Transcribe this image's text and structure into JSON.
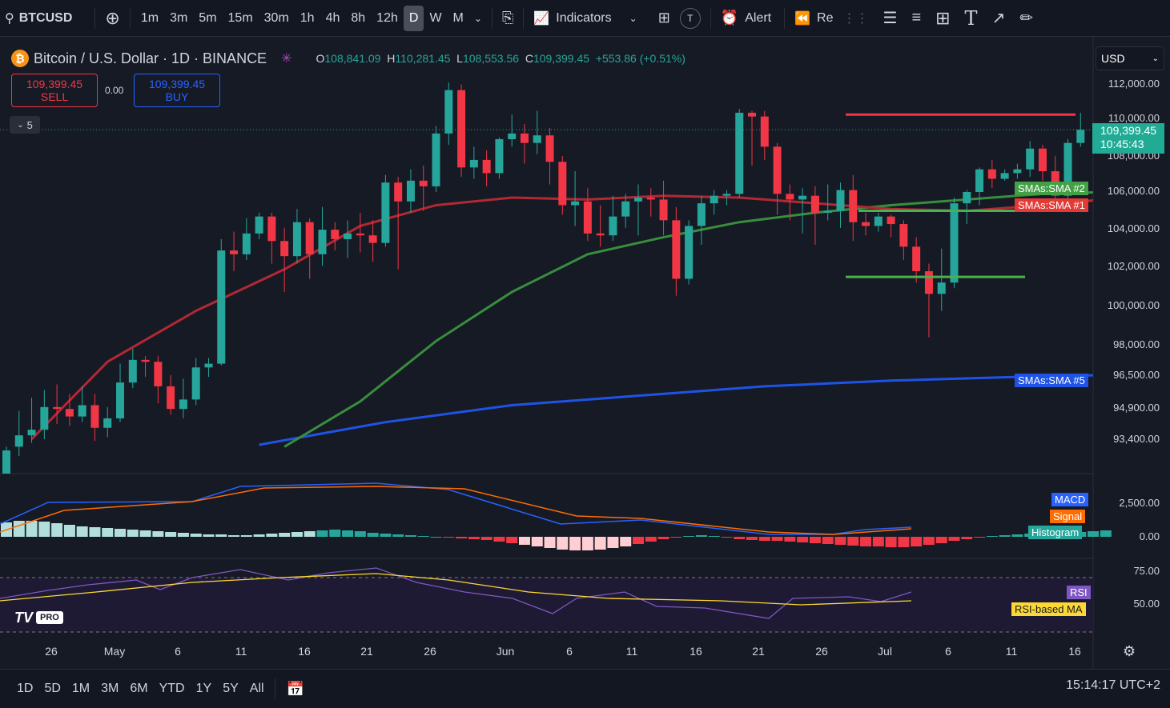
{
  "toolbar": {
    "symbol": "BTCUSD",
    "timeframes": [
      "1m",
      "3m",
      "5m",
      "15m",
      "30m",
      "1h",
      "4h",
      "8h",
      "12h",
      "D",
      "W",
      "M"
    ],
    "active_tf": "D",
    "indicators": "Indicators",
    "template_badge": "T",
    "alert": "Alert",
    "replay": "Re"
  },
  "legend": {
    "title": "Bitcoin / U.S. Dollar · 1D · BINANCE",
    "open_k": "O",
    "open": "108,841.09",
    "high_k": "H",
    "high": "110,281.45",
    "low_k": "L",
    "low": "108,553.56",
    "close_k": "C",
    "close": "109,399.45",
    "change": "+553.86 (+0.51%)"
  },
  "trade": {
    "sell_price": "109,399.45",
    "sell_label": "SELL",
    "buy_price": "109,399.45",
    "buy_label": "BUY",
    "spread": "0.00",
    "collapse": "5"
  },
  "currency": "USD",
  "price_axis": [
    "112,000.00",
    "110,000.00",
    "108,000.00",
    "106,000.00",
    "104,000.00",
    "102,000.00",
    "100,000.00",
    "98,000.00",
    "96,500.00",
    "94,900.00",
    "93,400.00"
  ],
  "last_price": "109,399.45",
  "countdown": "10:45:43",
  "tags": {
    "sma2": "SMAs:SMA #2",
    "sma1": "SMAs:SMA #1",
    "sma5": "SMAs:SMA #5",
    "macd": "MACD",
    "signal": "Signal",
    "hist": "Histogram",
    "rsi": "RSI",
    "rsi_ma": "RSI-based MA"
  },
  "macd_axis": [
    "2,500.00",
    "0.00"
  ],
  "rsi_axis": [
    "75.00",
    "50.00"
  ],
  "x_axis": [
    "26",
    "May",
    "6",
    "11",
    "16",
    "21",
    "26",
    "Jun",
    "6",
    "11",
    "16",
    "21",
    "26",
    "Jul",
    "6",
    "11",
    "16"
  ],
  "ranges": [
    "1D",
    "5D",
    "1M",
    "3M",
    "6M",
    "YTD",
    "1Y",
    "5Y",
    "All"
  ],
  "clock": "15:14:17 UTC+2",
  "logo": "PRO",
  "colors": {
    "up": "#26a69a",
    "down": "#f23645",
    "sma1": "#b22833",
    "sma2": "#388e3c",
    "sma5": "#1e53e5"
  },
  "chart_data": {
    "type": "candlestick",
    "candles": [
      [
        90500,
        92400,
        89800,
        92600
      ],
      [
        92600,
        93200,
        92100,
        94500
      ],
      [
        93200,
        93500,
        92800,
        95200
      ],
      [
        93500,
        94700,
        93000,
        95600
      ],
      [
        94700,
        94600,
        93800,
        95900
      ],
      [
        94600,
        94200,
        93700,
        95400
      ],
      [
        94200,
        94800,
        93900,
        95800
      ],
      [
        94800,
        93600,
        92900,
        95400
      ],
      [
        93600,
        94100,
        93100,
        94700
      ],
      [
        94100,
        96000,
        93900,
        97000
      ],
      [
        96000,
        97200,
        95700,
        97800
      ],
      [
        97200,
        97100,
        96300,
        97400
      ],
      [
        97100,
        95800,
        94900,
        97400
      ],
      [
        95800,
        94600,
        94300,
        96400
      ],
      [
        94600,
        95100,
        94100,
        96200
      ],
      [
        95100,
        96800,
        94800,
        97300
      ],
      [
        96800,
        97000,
        96300,
        97300
      ],
      [
        97000,
        103000,
        96900,
        103600
      ],
      [
        103000,
        102800,
        101900,
        104000
      ],
      [
        102800,
        103900,
        102500,
        104700
      ],
      [
        103900,
        104800,
        103600,
        105000
      ],
      [
        104800,
        103500,
        102300,
        105000
      ],
      [
        103500,
        102700,
        100800,
        104200
      ],
      [
        102700,
        104500,
        102300,
        105200
      ],
      [
        104500,
        102800,
        101500,
        104700
      ],
      [
        102800,
        104100,
        102200,
        105300
      ],
      [
        104100,
        103600,
        103000,
        104500
      ],
      [
        103600,
        103900,
        102600,
        104600
      ],
      [
        103900,
        103800,
        102900,
        105000
      ],
      [
        103800,
        103400,
        102400,
        104600
      ],
      [
        103400,
        106600,
        103200,
        107000
      ],
      [
        106600,
        105600,
        102000,
        106900
      ],
      [
        105600,
        106700,
        105000,
        107300
      ],
      [
        106700,
        106400,
        105100,
        107500
      ],
      [
        106400,
        109200,
        106100,
        109600
      ],
      [
        109200,
        111500,
        108600,
        111900
      ],
      [
        111500,
        107400,
        106900,
        111800
      ],
      [
        107400,
        107800,
        106800,
        108500
      ],
      [
        107800,
        107100,
        106400,
        108300
      ],
      [
        107100,
        108900,
        106800,
        109000
      ],
      [
        108900,
        109200,
        108500,
        110200
      ],
      [
        109200,
        108700,
        107600,
        109700
      ],
      [
        108700,
        109100,
        108100,
        110400
      ],
      [
        109100,
        107700,
        106500,
        109500
      ],
      [
        107700,
        105400,
        104900,
        108000
      ],
      [
        105400,
        105600,
        104300,
        107200
      ],
      [
        105600,
        103900,
        103500,
        106300
      ],
      [
        103900,
        103800,
        103200,
        105400
      ],
      [
        103800,
        104800,
        103500,
        105900
      ],
      [
        104800,
        105600,
        104200,
        106000
      ],
      [
        105600,
        105800,
        103800,
        106500
      ],
      [
        105800,
        105700,
        104800,
        106300
      ],
      [
        105700,
        104600,
        103800,
        106700
      ],
      [
        104600,
        101500,
        100600,
        105300
      ],
      [
        101500,
        104300,
        101200,
        104600
      ],
      [
        104300,
        105500,
        103300,
        105900
      ],
      [
        105500,
        105900,
        104900,
        106200
      ],
      [
        105900,
        106000,
        105400,
        106200
      ],
      [
        106000,
        110300,
        105800,
        110500
      ],
      [
        110300,
        110100,
        107500,
        110400
      ],
      [
        110100,
        108500,
        107800,
        110400
      ],
      [
        108500,
        106000,
        104900,
        108700
      ],
      [
        106000,
        105700,
        104600,
        106500
      ],
      [
        105700,
        105900,
        103900,
        106300
      ],
      [
        105900,
        105000,
        103300,
        106400
      ],
      [
        105000,
        105100,
        104600,
        106500
      ],
      [
        105100,
        106200,
        104200,
        106600
      ],
      [
        106200,
        104500,
        103500,
        107000
      ],
      [
        104500,
        104300,
        103800,
        105000
      ],
      [
        104300,
        104800,
        104000,
        105000
      ],
      [
        104800,
        104400,
        103700,
        104900
      ],
      [
        104400,
        103200,
        102500,
        104600
      ],
      [
        103200,
        101900,
        101300,
        103700
      ],
      [
        101900,
        100700,
        98400,
        102300
      ],
      [
        100700,
        101300,
        99800,
        103100
      ],
      [
        101300,
        105500,
        101000,
        105800
      ],
      [
        105500,
        106100,
        104400,
        106200
      ],
      [
        106100,
        107300,
        105400,
        107400
      ],
      [
        107300,
        106800,
        106300,
        107800
      ],
      [
        106800,
        107100,
        106700,
        107300
      ],
      [
        107100,
        107300,
        106800,
        107600
      ],
      [
        107300,
        108400,
        106900,
        108800
      ],
      [
        108400,
        107200,
        106700,
        108600
      ],
      [
        107200,
        105900,
        105700,
        108000
      ],
      [
        105900,
        108700,
        105200,
        108900
      ],
      [
        108700,
        109400,
        108500,
        110300
      ]
    ],
    "sma1_points": [
      [
        2,
        93000
      ],
      [
        8,
        97100
      ],
      [
        15,
        99800
      ],
      [
        22,
        102000
      ],
      [
        28,
        104300
      ],
      [
        34,
        105400
      ],
      [
        40,
        105800
      ],
      [
        46,
        105700
      ],
      [
        52,
        105900
      ],
      [
        58,
        105800
      ],
      [
        64,
        105500
      ],
      [
        70,
        105200
      ],
      [
        76,
        105100
      ],
      [
        80,
        105300
      ],
      [
        84,
        105400
      ],
      [
        87,
        105800
      ]
    ],
    "sma2_points": [
      [
        22,
        92600
      ],
      [
        28,
        95000
      ],
      [
        34,
        98200
      ],
      [
        40,
        100800
      ],
      [
        46,
        102800
      ],
      [
        52,
        103700
      ],
      [
        58,
        104500
      ],
      [
        64,
        105000
      ],
      [
        70,
        105400
      ],
      [
        76,
        105700
      ],
      [
        82,
        106000
      ],
      [
        87,
        106100
      ]
    ],
    "sma5_points": [
      [
        20,
        92700
      ],
      [
        30,
        93900
      ],
      [
        40,
        94800
      ],
      [
        50,
        95300
      ],
      [
        60,
        95800
      ],
      [
        70,
        96100
      ],
      [
        80,
        96300
      ],
      [
        87,
        96400
      ]
    ],
    "hlines": [
      {
        "price": 110200,
        "color": "red"
      },
      {
        "price": 105100,
        "color": "green"
      },
      {
        "price": 101600,
        "color": "green"
      }
    ]
  }
}
